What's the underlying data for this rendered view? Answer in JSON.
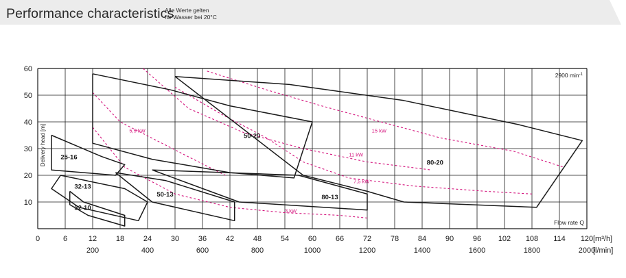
{
  "header": {
    "title": "Performance characteristics",
    "note_line1": "Alle Werte gelten",
    "note_line2": "für Wasser bei 20°C"
  },
  "chart_data": {
    "type": "line",
    "speed_label": "2900 min",
    "speed_sup": "-1",
    "ylabel": "Delivery head [m]",
    "xlabel": "Flow rate Q",
    "xlim": [
      0,
      120
    ],
    "ylim": [
      0,
      60
    ],
    "x_ticks_m3h": [
      "0",
      "6",
      "12",
      "18",
      "24",
      "30",
      "36",
      "42",
      "48",
      "54",
      "60",
      "66",
      "72",
      "78",
      "84",
      "90",
      "96",
      "102",
      "108",
      "114",
      "120"
    ],
    "x_unit_m3h": "[m³/h]",
    "x_ticks_lmin": [
      {
        "x": 12,
        "label": "200"
      },
      {
        "x": 24,
        "label": "400"
      },
      {
        "x": 36,
        "label": "600"
      },
      {
        "x": 48,
        "label": "800"
      },
      {
        "x": 60,
        "label": "1000"
      },
      {
        "x": 72,
        "label": "1200"
      },
      {
        "x": 84,
        "label": "1400"
      },
      {
        "x": 96,
        "label": "1600"
      },
      {
        "x": 108,
        "label": "1800"
      },
      {
        "x": 120,
        "label": "2000"
      }
    ],
    "x_unit_lmin": "[l/min]",
    "y_ticks": [
      "10",
      "20",
      "30",
      "40",
      "50",
      "60"
    ],
    "pump_colors": {
      "outline": "#1a1a1a",
      "power": "#d4147d"
    },
    "pumps": [
      {
        "name": "25-16",
        "label_at": [
          5,
          26
        ],
        "outline": [
          [
            3,
            35
          ],
          [
            14,
            27
          ],
          [
            19,
            24
          ],
          [
            17,
            20
          ],
          [
            3,
            22
          ],
          [
            3,
            35
          ]
        ]
      },
      {
        "name": "32-13",
        "label_at": [
          8,
          15
        ],
        "outline": [
          [
            5,
            20
          ],
          [
            19,
            15
          ],
          [
            24,
            10
          ],
          [
            22,
            3
          ],
          [
            9,
            8
          ],
          [
            3,
            15
          ],
          [
            5,
            20
          ]
        ]
      },
      {
        "name": "32-10",
        "label_at": [
          8,
          7
        ],
        "outline": [
          [
            7,
            14
          ],
          [
            10,
            10
          ],
          [
            19,
            5
          ],
          [
            19,
            1
          ],
          [
            11,
            5
          ],
          [
            7,
            9
          ],
          [
            7,
            14
          ]
        ]
      },
      {
        "name": "50-13",
        "label_at": [
          26,
          12
        ],
        "outline": [
          [
            17,
            21
          ],
          [
            28,
            18
          ],
          [
            43,
            10
          ],
          [
            43,
            3
          ],
          [
            25,
            10
          ],
          [
            17,
            21
          ]
        ]
      },
      {
        "name": "50-20",
        "label_at": [
          45,
          34
        ],
        "outline": [
          [
            12,
            58
          ],
          [
            29,
            52
          ],
          [
            42,
            46
          ],
          [
            60,
            40
          ],
          [
            56,
            19
          ],
          [
            42,
            21
          ],
          [
            25,
            26
          ],
          [
            12,
            32
          ],
          [
            12,
            58
          ]
        ]
      },
      {
        "name": "80-13",
        "label_at": [
          62,
          11
        ],
        "outline": [
          [
            25,
            22
          ],
          [
            57,
            20
          ],
          [
            72,
            13
          ],
          [
            72,
            7
          ],
          [
            44,
            10
          ],
          [
            25,
            22
          ]
        ]
      },
      {
        "name": "80-20",
        "label_at": [
          85,
          24
        ],
        "outline": [
          [
            30,
            57
          ],
          [
            55,
            54
          ],
          [
            80,
            48
          ],
          [
            105,
            39
          ],
          [
            119,
            33
          ],
          [
            109,
            8
          ],
          [
            80,
            10
          ],
          [
            72,
            14
          ],
          [
            58,
            20
          ],
          [
            30,
            57
          ]
        ]
      }
    ],
    "power_curves": [
      {
        "label": "5,5 kW",
        "label_at": [
          20,
          36
        ],
        "points": [
          [
            12,
            51
          ],
          [
            18,
            40
          ],
          [
            26,
            33
          ],
          [
            34,
            26
          ],
          [
            41,
            20
          ]
        ]
      },
      {
        "label": "11 kW",
        "label_at": [
          68,
          27
        ],
        "points": [
          [
            23,
            60
          ],
          [
            33,
            45
          ],
          [
            45,
            36
          ],
          [
            58,
            30
          ],
          [
            72,
            25
          ],
          [
            86,
            22
          ]
        ]
      },
      {
        "label": "15 kW",
        "label_at": [
          73,
          36
        ],
        "points": [
          [
            37,
            59
          ],
          [
            50,
            52
          ],
          [
            62,
            46
          ],
          [
            75,
            40
          ],
          [
            88,
            34
          ],
          [
            104,
            29
          ],
          [
            115,
            23
          ]
        ]
      },
      {
        "label": "7,5 kW",
        "label_at": [
          69,
          17
        ],
        "points": [
          [
            30,
            53
          ],
          [
            40,
            43
          ],
          [
            50,
            34
          ],
          [
            58,
            25
          ],
          [
            68,
            19
          ],
          [
            82,
            16
          ],
          [
            98,
            14
          ],
          [
            108,
            13
          ]
        ]
      },
      {
        "label": "3 kW",
        "label_at": [
          54,
          6
        ],
        "points": [
          [
            12,
            38
          ],
          [
            19,
            23
          ],
          [
            30,
            13
          ],
          [
            42,
            8
          ],
          [
            54,
            6
          ],
          [
            66,
            5
          ],
          [
            72,
            4
          ]
        ]
      }
    ]
  }
}
